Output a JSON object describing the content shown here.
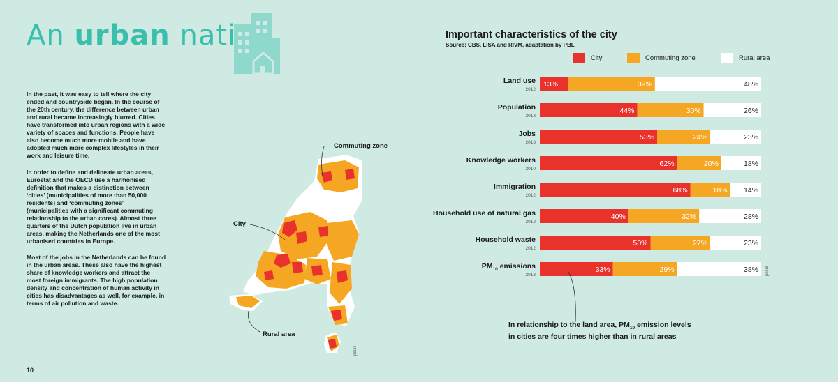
{
  "title": {
    "prefix": "An ",
    "bold": "urban",
    "suffix": " nation"
  },
  "paragraphs": [
    "In the past, it was easy to tell where the city ended and countryside began. In the course of the 20th century, the difference between urban and rural became increasingly blurred. Cities have transformed into urban regions with a wide variety of spaces and functions. People have also become much more mobile and have adopted much more complex lifestyles in their work and leisure time.",
    "In order to define and delineate urban areas, Eurostat and the OECD use a harmonised definition that makes a distinction between ‘cities’ (municipalities of more than 50,000 residents) and ‘commuting zones’ (municipalities with a significant commuting relationship to the urban cores). Almost three quarters of the Dutch population live in urban areas, making the Netherlands one of the most urbanised countries in Europe.",
    "Most of the jobs in the Netherlands can be found in the urban areas. These also have the highest share of knowledge workers and attract the most foreign immigrants. The high population density and concentration of human activity in cities has disadvantages as well, for example, in terms of air pollution and waste."
  ],
  "page_number": "10",
  "map": {
    "labels": {
      "commuting": "Commuting zone",
      "city": "City",
      "rural": "Rural area"
    },
    "credit": "pbl.nl"
  },
  "colors": {
    "city": "#e8322b",
    "commuting": "#f5a623",
    "rural": "#ffffff",
    "accent": "#3bbfad",
    "background": "#cfe9e3"
  },
  "chart_credit": "pbl.nl",
  "note": {
    "line1_a": "In relationship to the land area, PM",
    "line1_sub": "10",
    "line1_b": " emission levels",
    "line2": "in cities are four times higher than in rural areas"
  },
  "chart_data": {
    "type": "bar",
    "stacked": true,
    "orientation": "horizontal",
    "title": "Important characteristics of the city",
    "subtitle": "Source: CBS, LISA and RIVM, adaptation by PBL",
    "legend": [
      "City",
      "Commuting zone",
      "Rural area"
    ],
    "legend_position": "top",
    "categories": [
      {
        "label": "Land use",
        "sub": "",
        "year": "2012"
      },
      {
        "label": "Population",
        "sub": "",
        "year": "2013"
      },
      {
        "label": "Jobs",
        "sub": "",
        "year": "2013"
      },
      {
        "label": "Knowledge workers",
        "sub": "",
        "year": "2010"
      },
      {
        "label": "Immigration",
        "sub": "",
        "year": "2012"
      },
      {
        "label": "Household use of natural gas",
        "sub": "",
        "year": "2012"
      },
      {
        "label": "Household waste",
        "sub": "",
        "year": "2012"
      },
      {
        "label": "PM",
        "sub": "10",
        "suffix": " emissions",
        "year": "2013"
      }
    ],
    "series": [
      {
        "name": "City",
        "values": [
          13,
          44,
          53,
          62,
          68,
          40,
          50,
          33
        ]
      },
      {
        "name": "Commuting zone",
        "values": [
          39,
          30,
          24,
          20,
          18,
          32,
          27,
          29
        ]
      },
      {
        "name": "Rural area",
        "values": [
          48,
          26,
          23,
          18,
          14,
          28,
          23,
          38
        ]
      }
    ],
    "unit": "%"
  }
}
